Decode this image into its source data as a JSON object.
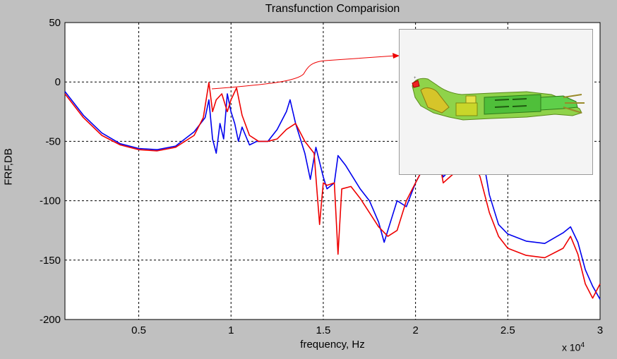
{
  "title": "Transfunction Comparision",
  "xlabel": "frequency, Hz",
  "ylabel": "FRF,DB",
  "x_multiplier": {
    "base": "x 10",
    "exp": "4"
  },
  "colors": {
    "series_a": "#0000ee",
    "series_b": "#ee0000",
    "grid": "#000000",
    "background": "#c0c0c0",
    "axes_bg": "#ffffff"
  },
  "inset": {
    "image": "3D FEA model of a robotic finger mechanism (green/yellow mesh)"
  },
  "chart_data": {
    "type": "line",
    "title": "Transfunction Comparision",
    "xlabel": "frequency, Hz",
    "ylabel": "FRF,DB",
    "xlim": [
      0.1,
      3.0
    ],
    "ylim": [
      -200,
      50
    ],
    "x_scale_note": "x 10^4",
    "x_ticks": [
      "0.5",
      "1",
      "1.5",
      "2",
      "2.5",
      "3"
    ],
    "x_tick_values": [
      0.5,
      1.0,
      1.5,
      2.0,
      2.5,
      3.0
    ],
    "y_ticks": [
      "50",
      "0",
      "-50",
      "-100",
      "-150",
      "-200"
    ],
    "y_tick_values": [
      50,
      0,
      -50,
      -100,
      -150,
      -200
    ],
    "grid": true,
    "series": [
      {
        "color": "blue",
        "x": [
          0.1,
          0.2,
          0.3,
          0.4,
          0.5,
          0.6,
          0.7,
          0.8,
          0.86,
          0.88,
          0.9,
          0.92,
          0.94,
          0.96,
          0.98,
          1.0,
          1.02,
          1.04,
          1.06,
          1.1,
          1.14,
          1.2,
          1.25,
          1.3,
          1.32,
          1.35,
          1.4,
          1.43,
          1.46,
          1.5,
          1.52,
          1.56,
          1.58,
          1.62,
          1.7,
          1.75,
          1.8,
          1.83,
          1.86,
          1.9,
          1.95,
          2.0,
          2.05,
          2.1,
          2.15,
          2.2,
          2.25,
          2.3,
          2.35,
          2.4,
          2.45,
          2.5,
          2.6,
          2.7,
          2.8,
          2.84,
          2.88,
          2.92,
          2.96,
          3.0
        ],
        "y": [
          -8,
          -28,
          -43,
          -52,
          -56,
          -57,
          -54,
          -42,
          -30,
          -15,
          -48,
          -60,
          -35,
          -48,
          -10,
          -25,
          -35,
          -50,
          -38,
          -53,
          -50,
          -50,
          -40,
          -25,
          -15,
          -35,
          -60,
          -82,
          -55,
          -80,
          -90,
          -85,
          -62,
          -70,
          -90,
          -100,
          -118,
          -135,
          -120,
          -100,
          -105,
          -85,
          -70,
          -45,
          -80,
          -72,
          -70,
          -62,
          -50,
          -95,
          -120,
          -128,
          -134,
          -136,
          -127,
          -122,
          -135,
          -158,
          -172,
          -183
        ]
      },
      {
        "color": "red",
        "x": [
          0.1,
          0.2,
          0.3,
          0.4,
          0.5,
          0.6,
          0.7,
          0.8,
          0.85,
          0.88,
          0.9,
          0.92,
          0.95,
          0.98,
          1.0,
          1.03,
          1.06,
          1.1,
          1.15,
          1.2,
          1.25,
          1.3,
          1.35,
          1.4,
          1.45,
          1.48,
          1.5,
          1.52,
          1.56,
          1.58,
          1.6,
          1.65,
          1.7,
          1.75,
          1.8,
          1.85,
          1.9,
          1.95,
          2.0,
          2.05,
          2.1,
          2.15,
          2.2,
          2.25,
          2.3,
          2.35,
          2.4,
          2.45,
          2.5,
          2.6,
          2.7,
          2.8,
          2.84,
          2.88,
          2.92,
          2.96,
          3.0
        ],
        "y": [
          -10,
          -30,
          -45,
          -53,
          -57,
          -58,
          -55,
          -45,
          -30,
          -0.5,
          -25,
          -15,
          -10,
          -25,
          -15,
          -5,
          -28,
          -45,
          -50,
          -50,
          -48,
          -40,
          -35,
          -50,
          -60,
          -120,
          -85,
          -87,
          -85,
          -145,
          -90,
          -88,
          -98,
          -110,
          -122,
          -130,
          -125,
          -100,
          -85,
          -70,
          -40,
          -85,
          -78,
          -75,
          -60,
          -80,
          -110,
          -130,
          -140,
          -146,
          -148,
          -140,
          -130,
          -145,
          -170,
          -182,
          -170
        ]
      }
    ]
  }
}
